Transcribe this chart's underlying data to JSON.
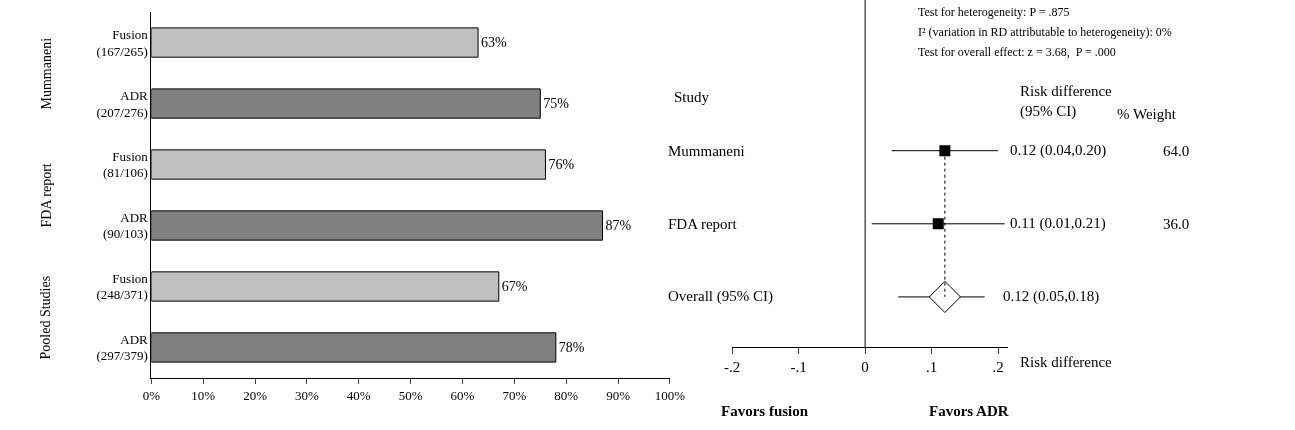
{
  "chart_data": [
    {
      "type": "bar",
      "orientation": "horizontal",
      "categories": [
        "Fusion\n(167/265)",
        "ADR\n(207/276)",
        "Fusion\n(81/106)",
        "ADR\n(90/103)",
        "Fusion\n(248/371)",
        "ADR\n(297/379)"
      ],
      "values": [
        63,
        75,
        76,
        87,
        67,
        78
      ],
      "colors": [
        "#c0c0c0",
        "#808080",
        "#c0c0c0",
        "#808080",
        "#c0c0c0",
        "#808080"
      ],
      "value_labels": [
        "63%",
        "75%",
        "76%",
        "87%",
        "67%",
        "78%"
      ],
      "xlim": [
        0,
        100
      ],
      "xticks": [
        {
          "value": 0,
          "label": "0%"
        },
        {
          "value": 10,
          "label": "10%"
        },
        {
          "value": 20,
          "label": "20%"
        },
        {
          "value": 30,
          "label": "30%"
        },
        {
          "value": 40,
          "label": "40%"
        },
        {
          "value": 50,
          "label": "50%"
        },
        {
          "value": 60,
          "label": "60%"
        },
        {
          "value": 70,
          "label": "70%"
        },
        {
          "value": 80,
          "label": "80%"
        },
        {
          "value": 90,
          "label": "90%"
        },
        {
          "value": 100,
          "label": "100%"
        }
      ],
      "annotations": [
        "Mummaneni",
        "FDA report",
        "Pooled Studies"
      ]
    },
    {
      "type": "scatter",
      "orientation": "horizontal",
      "categories": [
        "Mummaneni",
        "FDA report",
        "Overall (95% CI)"
      ],
      "series": [
        {
          "color": "#000000",
          "marker": "square",
          "values": [
            0.12,
            0.11,
            null
          ],
          "errors": [
            [
              0.04,
              0.2
            ],
            [
              0.01,
              0.21
            ],
            null
          ],
          "value_labels": [
            "0.12 (0.04,0.20)",
            "0.11 (0.01,0.21)",
            null
          ]
        },
        {
          "color": "#000000",
          "marker": "diamond",
          "values": [
            null,
            null,
            0.12
          ],
          "errors": [
            null,
            null,
            [
              0.05,
              0.18
            ]
          ],
          "value_labels": [
            null,
            null,
            "0.12 (0.05,0.18)"
          ]
        }
      ],
      "xlim": [
        -0.2,
        0.215
      ],
      "xticks": [
        {
          "value": -0.2,
          "label": "-.2"
        },
        {
          "value": -0.1,
          "label": "-.1"
        },
        0,
        {
          "value": 0.1,
          "label": ".1"
        },
        {
          "value": 0.2,
          "label": ".2"
        }
      ],
      "xlabel": "Risk difference",
      "ref_lines": [
        {
          "axis": "x",
          "value": 0,
          "color": "#000000",
          "line_style": "solid"
        },
        {
          "axis": "x",
          "value": 0.12,
          "color": "#000000",
          "line_style": "dotted"
        }
      ],
      "annotations": [
        "Test for heterogeneity: P = .875",
        "I² (variation in RD attributable to heterogeneity): 0%",
        "Test for overall effect: z = 3.68,  P = .000",
        "Study",
        "Risk difference\n(95% CI)",
        "% Weight",
        "64.0",
        "36.0",
        "Favors fusion",
        "Favors ADR"
      ]
    }
  ]
}
